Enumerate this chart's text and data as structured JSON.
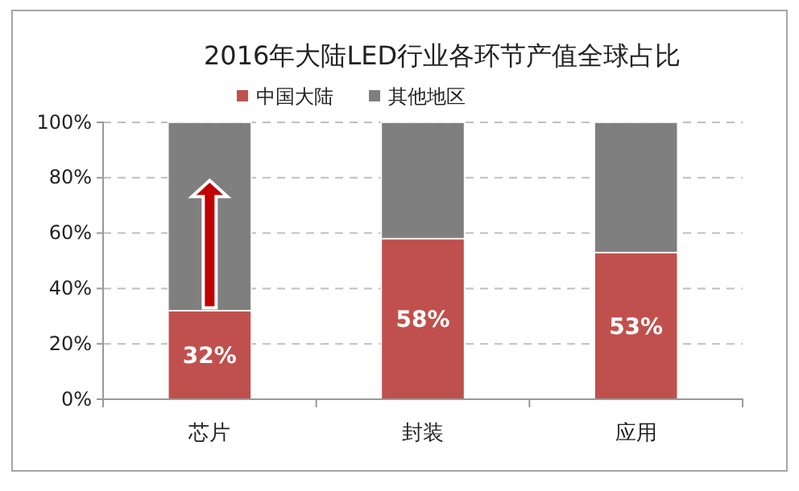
{
  "chart_data": {
    "type": "bar",
    "stacked": true,
    "title": "2016年大陆LED行业各环节产值全球占比",
    "categories": [
      "芯片",
      "封装",
      "应用"
    ],
    "series": [
      {
        "name": "中国大陆",
        "color": "#c0504d",
        "values": [
          32,
          58,
          53
        ],
        "value_labels": [
          "32%",
          "58%",
          "53%"
        ]
      },
      {
        "name": "其他地区",
        "color": "#7f7f7f",
        "values": [
          68,
          42,
          47
        ]
      }
    ],
    "ylim": [
      0,
      100
    ],
    "yticks": [
      {
        "value": 0,
        "label": "0%"
      },
      {
        "value": 20,
        "label": "20%"
      },
      {
        "value": 40,
        "label": "40%"
      },
      {
        "value": 60,
        "label": "60%"
      },
      {
        "value": 80,
        "label": "80%"
      },
      {
        "value": 100,
        "label": "100%"
      }
    ],
    "grid": "y",
    "legend": "top"
  }
}
